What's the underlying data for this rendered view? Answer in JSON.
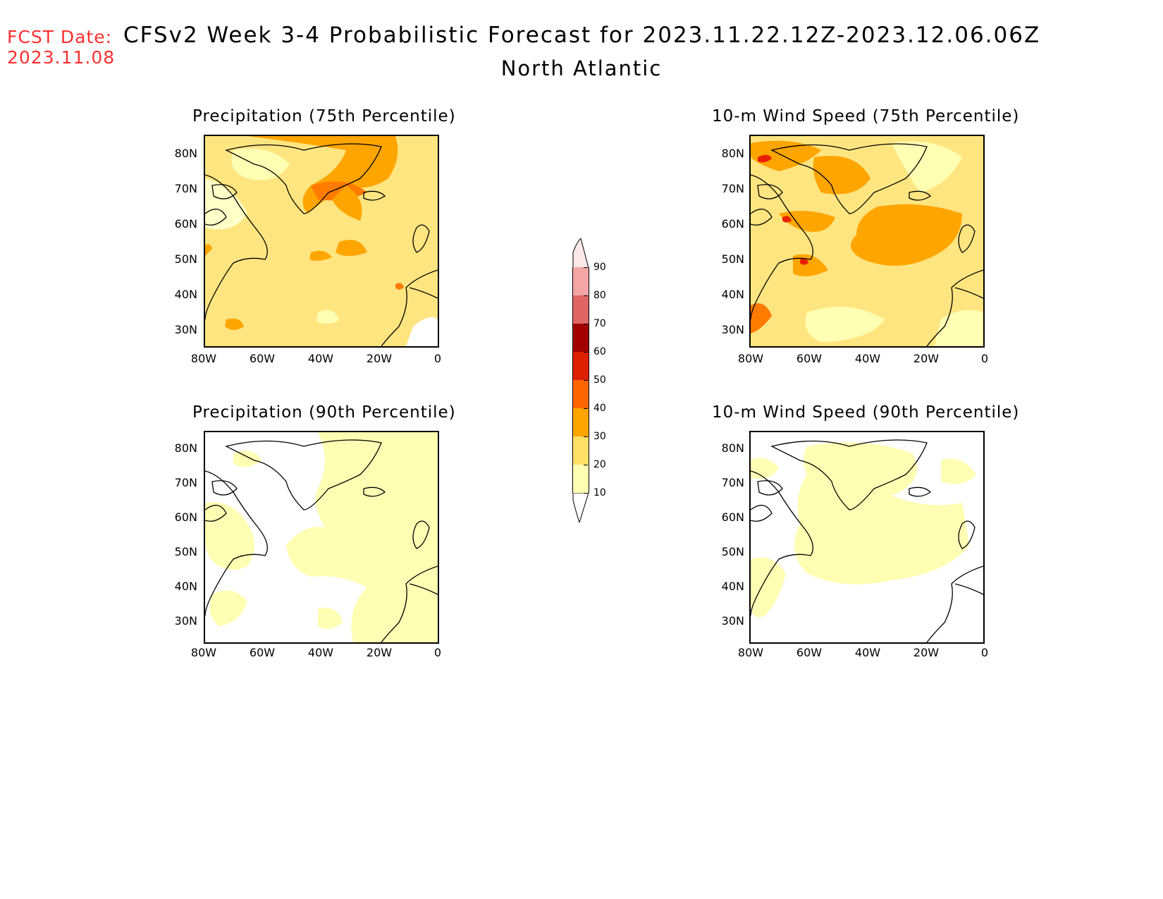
{
  "header": {
    "fcst_label": "FCST Date:",
    "fcst_date": "2023.11.08",
    "title": "CFSv2 Week 3-4 Probabilistic Forecast for 2023.11.22.12Z-2023.12.06.06Z",
    "subtitle": "North Atlantic"
  },
  "panels": [
    {
      "title": "Precipitation (75th Percentile)"
    },
    {
      "title": "10-m Wind Speed (75th Percentile)"
    },
    {
      "title": "Precipitation (90th Percentile)"
    },
    {
      "title": "10-m Wind Speed (90th Percentile)"
    }
  ],
  "axes": {
    "lat_labels": [
      "80N",
      "70N",
      "60N",
      "50N",
      "40N",
      "30N"
    ],
    "lon_labels": [
      "80W",
      "60W",
      "40W",
      "20W",
      "0"
    ]
  },
  "colorbar": {
    "labels": [
      "90",
      "80",
      "70",
      "60",
      "50",
      "40",
      "30",
      "20",
      "10"
    ],
    "colors": [
      "#f4a5a5",
      "#e06666",
      "#a30000",
      "#dd2000",
      "#ff6600",
      "#ffa500",
      "#ffe066",
      "#ffffb3"
    ]
  },
  "map_extent": {
    "lon": [
      -80,
      0
    ],
    "lat": [
      25,
      85
    ]
  }
}
